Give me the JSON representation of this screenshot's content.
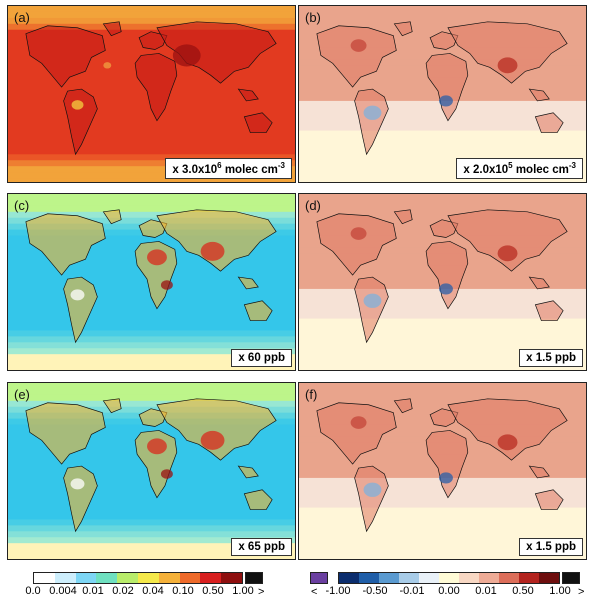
{
  "panels": [
    {
      "label": "(a)",
      "scale_html": "x 3.0x10<sup>6</sup> molec cm<sup>-3</sup>",
      "variant": "oh"
    },
    {
      "label": "(b)",
      "scale_html": "x 2.0x10<sup>5</sup> molec cm<sup>-3</sup>",
      "variant": "diff"
    },
    {
      "label": "(c)",
      "scale_html": "x 60 ppb",
      "variant": "o3"
    },
    {
      "label": "(d)",
      "scale_html": "x 1.5 ppb",
      "variant": "diff"
    },
    {
      "label": "(e)",
      "scale_html": "x 65 ppb",
      "variant": "o3"
    },
    {
      "label": "(f)",
      "scale_html": "x 1.5 ppb",
      "variant": "diff"
    }
  ],
  "colorbar_left": {
    "colors": [
      "#ffffff",
      "#cdeefc",
      "#7dd6f5",
      "#6fe0c0",
      "#b8ec6a",
      "#f5e94a",
      "#f5b13a",
      "#ee6a2a",
      "#d81f1f",
      "#8e0f0f"
    ],
    "ticks": [
      "0.0",
      "0.004",
      "0.01",
      "0.02",
      "0.04",
      "0.10",
      "0.50",
      "1.00"
    ],
    "over_symbol": ">",
    "over_color": "#111111"
  },
  "colorbar_right": {
    "colors": [
      "#0b2d6e",
      "#1f5ea8",
      "#5a9ad0",
      "#a8cce8",
      "#e9f1f8",
      "#fffbd6",
      "#f8d8c4",
      "#eeab96",
      "#dc6e5a",
      "#b3231e",
      "#6e0e0e"
    ],
    "ticks": [
      "-1.00",
      "-0.50",
      "-0.01",
      "0.00",
      "0.01",
      "0.50",
      "1.00"
    ],
    "under_symbol": "<",
    "over_symbol": ">",
    "under_color": "#6a3fa0",
    "over_color": "#111111"
  }
}
